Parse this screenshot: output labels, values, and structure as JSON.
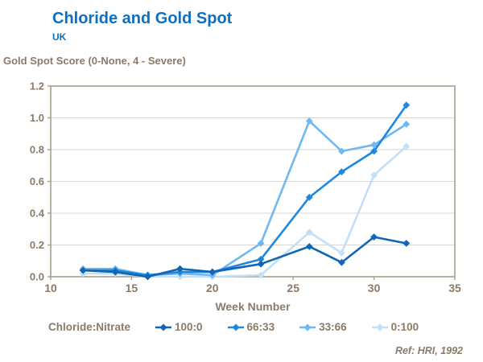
{
  "header": {
    "title": "Chloride and Gold Spot",
    "subtitle": "UK"
  },
  "footer": {
    "ref": "Ref: HRI, 1992"
  },
  "colors": {
    "title_text": "#0E6FC0",
    "axis_text": "#8C7A68",
    "gridline": "#DAD6CF",
    "plot_border": "#A89C8C",
    "background": "#FFFFFF"
  },
  "chart_data": {
    "type": "line",
    "title": "Chloride and Gold Spot",
    "subtitle": "UK",
    "y_axis_caption": "Gold Spot Score (0-None, 4 - Severe)",
    "xlabel": "Week Number",
    "legend_label": "Chloride:Nitrate",
    "legend_position": "bottom",
    "grid": "horizontal",
    "marker": "diamond",
    "xlim": [
      10,
      35
    ],
    "ylim": [
      0,
      1.2
    ],
    "x_ticks": [
      10,
      15,
      20,
      25,
      30,
      35
    ],
    "y_ticks": [
      0,
      0.2,
      0.4,
      0.6,
      0.8,
      1.0,
      1.2
    ],
    "x": [
      12,
      14,
      16,
      18,
      20,
      23,
      26,
      28,
      30,
      32
    ],
    "series": [
      {
        "name": "100:0",
        "color": "#1066B4",
        "values": [
          0.04,
          0.03,
          0.0,
          0.05,
          0.03,
          0.08,
          0.19,
          0.09,
          0.25,
          0.21
        ]
      },
      {
        "name": "66:33",
        "color": "#1E88E0",
        "values": [
          0.04,
          0.04,
          0.01,
          0.03,
          0.03,
          0.11,
          0.5,
          0.66,
          0.79,
          1.08
        ]
      },
      {
        "name": "33:66",
        "color": "#6FB8F0",
        "values": [
          0.05,
          0.05,
          0.01,
          0.02,
          0.01,
          0.21,
          0.98,
          0.79,
          0.83,
          0.96
        ]
      },
      {
        "name": "0:100",
        "color": "#C2DFF7",
        "values": [
          0.02,
          0.02,
          0.0,
          0.0,
          0.0,
          0.01,
          0.28,
          0.15,
          0.64,
          0.82
        ]
      }
    ]
  }
}
